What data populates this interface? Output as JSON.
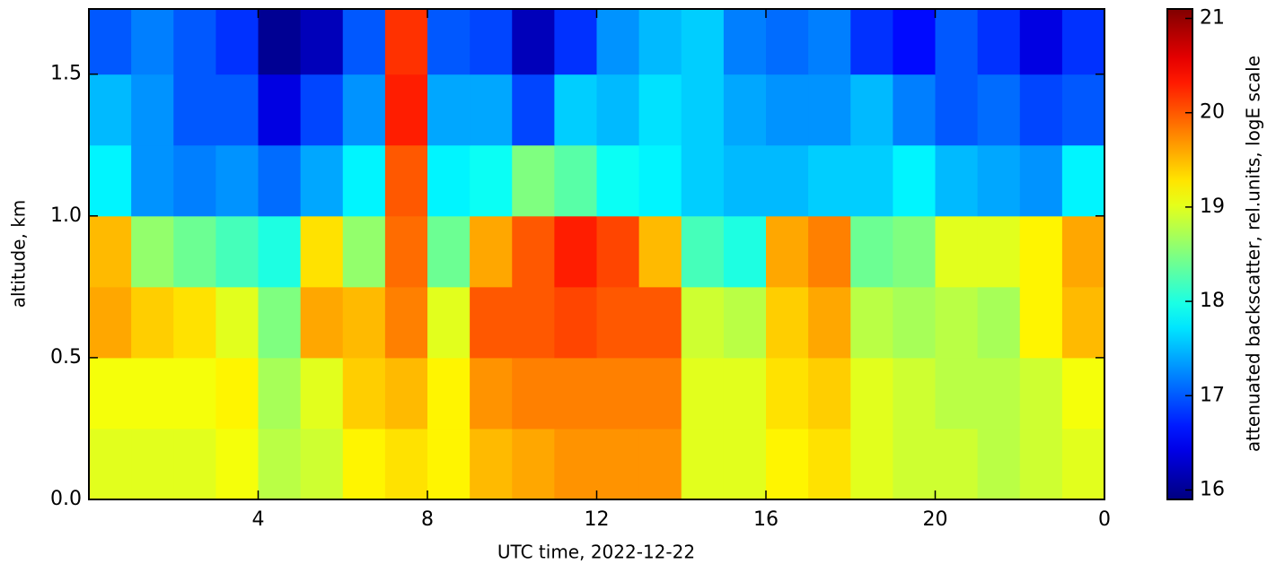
{
  "chart_data": {
    "type": "heatmap",
    "xlabel": "UTC time,  2022-12-22",
    "ylabel": "altitude, km",
    "colorbar_label": "attenuated backscatter, rel.units, logE scale",
    "colormap": "jet",
    "xlim": [
      0,
      24
    ],
    "ylim": [
      0,
      1.73
    ],
    "zlim": [
      15.9,
      21.1
    ],
    "xticks": [
      4,
      8,
      12,
      16,
      20,
      {
        "value": 24,
        "label": "0"
      }
    ],
    "yticks": [
      {
        "value": 0,
        "label": "0.0"
      },
      0.5,
      {
        "value": 1,
        "label": "1.0"
      },
      1.5
    ],
    "zticks": [
      16,
      17,
      18,
      19,
      20,
      21
    ],
    "x_bins": [
      0,
      1,
      2,
      3,
      4,
      5,
      6,
      7,
      8,
      9,
      10,
      11,
      12,
      13,
      14,
      15,
      16,
      17,
      18,
      19,
      20,
      21,
      22,
      23,
      24
    ],
    "y_bins": [
      0,
      0.25,
      0.5,
      0.75,
      1.0,
      1.25,
      1.5,
      1.73
    ],
    "z": [
      [
        19.0,
        19.0,
        19.0,
        19.1,
        18.8,
        18.9,
        19.2,
        19.3,
        19.2,
        19.5,
        19.6,
        19.7,
        19.7,
        19.7,
        19.0,
        19.0,
        19.2,
        19.3,
        19.0,
        18.9,
        18.9,
        18.8,
        18.9,
        19.0
      ],
      [
        19.1,
        19.1,
        19.1,
        19.2,
        18.7,
        19.0,
        19.4,
        19.5,
        19.2,
        19.7,
        19.8,
        19.8,
        19.8,
        19.8,
        19.0,
        19.0,
        19.3,
        19.4,
        19.0,
        18.9,
        18.8,
        18.8,
        18.9,
        19.1
      ],
      [
        19.6,
        19.4,
        19.3,
        19.0,
        18.5,
        19.6,
        19.5,
        19.8,
        19.0,
        20.0,
        20.0,
        20.1,
        20.0,
        20.0,
        18.9,
        18.8,
        19.4,
        19.6,
        18.8,
        18.7,
        18.8,
        18.7,
        19.2,
        19.5
      ],
      [
        19.5,
        18.6,
        18.4,
        18.2,
        18.0,
        19.3,
        18.6,
        19.9,
        18.4,
        19.6,
        20.0,
        20.3,
        20.1,
        19.5,
        18.2,
        18.0,
        19.6,
        19.8,
        18.4,
        18.5,
        19.0,
        19.0,
        19.2,
        19.6
      ],
      [
        17.8,
        17.3,
        17.2,
        17.3,
        17.1,
        17.4,
        17.8,
        20.0,
        17.8,
        17.9,
        18.5,
        18.3,
        17.9,
        17.8,
        17.6,
        17.5,
        17.5,
        17.6,
        17.6,
        17.8,
        17.5,
        17.4,
        17.3,
        17.8
      ],
      [
        17.5,
        17.3,
        17.0,
        17.0,
        16.4,
        16.9,
        17.3,
        20.3,
        17.4,
        17.4,
        16.9,
        17.6,
        17.5,
        17.7,
        17.6,
        17.4,
        17.3,
        17.3,
        17.5,
        17.2,
        17.0,
        17.1,
        16.9,
        17.0
      ],
      [
        17.0,
        17.2,
        17.0,
        16.8,
        16.0,
        16.2,
        17.0,
        20.2,
        17.0,
        16.9,
        16.2,
        16.8,
        17.3,
        17.5,
        17.6,
        17.2,
        17.1,
        17.2,
        16.8,
        16.6,
        17.0,
        16.8,
        16.4,
        16.8
      ]
    ]
  }
}
